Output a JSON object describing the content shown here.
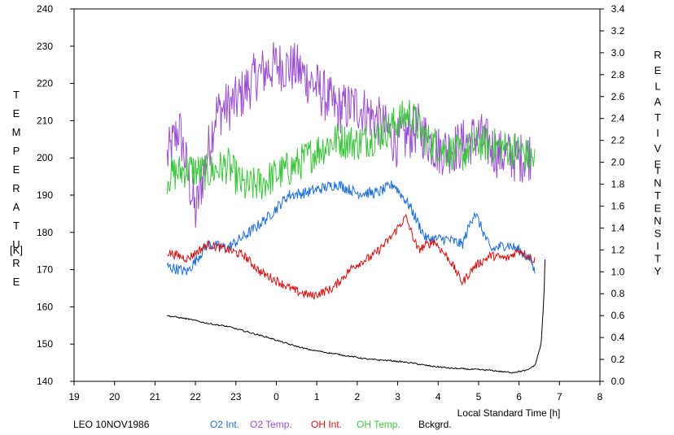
{
  "chart_data": {
    "type": "line",
    "xlabel": "Local Standard Time [h]",
    "x_ticks": [
      "19",
      "20",
      "21",
      "22",
      "23",
      "0",
      "1",
      "2",
      "3",
      "4",
      "5",
      "6",
      "7",
      "8"
    ],
    "x_range_hours": [
      19,
      32
    ],
    "y_left": {
      "label_letters": [
        "T",
        "E",
        "M",
        "P",
        "E",
        "R",
        "A",
        "T",
        "U",
        "R",
        "E"
      ],
      "unit": "[K]",
      "range": [
        140,
        240
      ],
      "ticks": [
        "140",
        "150",
        "160",
        "170",
        "180",
        "190",
        "200",
        "210",
        "220",
        "230",
        "240"
      ]
    },
    "y_right": {
      "label_word1": [
        "R",
        "E",
        "L",
        "A",
        "T",
        "I",
        "V",
        "E"
      ],
      "label_word2": [
        "I",
        "N",
        "T",
        "E",
        "N",
        "S",
        "I",
        "T",
        "Y"
      ],
      "range": [
        0.0,
        3.4
      ],
      "ticks": [
        "0.0",
        "0.2",
        "0.4",
        "0.6",
        "0.8",
        "1.0",
        "1.2",
        "1.4",
        "1.6",
        "1.8",
        "2.0",
        "2.2",
        "2.4",
        "2.6",
        "2.8",
        "3.0",
        "3.2",
        "3.4"
      ]
    },
    "footer_label": "LEO 10NOV1986",
    "series": [
      {
        "name": "O2 Int.",
        "color": "#1f6fd8",
        "axis": "right",
        "noise": 0.05,
        "points": [
          [
            21.3,
            1.05
          ],
          [
            21.8,
            1.0
          ],
          [
            22.3,
            1.25
          ],
          [
            22.8,
            1.22
          ],
          [
            23.3,
            1.35
          ],
          [
            23.8,
            1.5
          ],
          [
            24.3,
            1.7
          ],
          [
            24.7,
            1.72
          ],
          [
            25.0,
            1.75
          ],
          [
            25.5,
            1.8
          ],
          [
            26.0,
            1.72
          ],
          [
            26.5,
            1.72
          ],
          [
            26.9,
            1.8
          ],
          [
            27.3,
            1.6
          ],
          [
            27.7,
            1.3
          ],
          [
            28.2,
            1.3
          ],
          [
            28.6,
            1.25
          ],
          [
            28.9,
            1.55
          ],
          [
            29.3,
            1.2
          ],
          [
            29.7,
            1.25
          ],
          [
            30.0,
            1.2
          ],
          [
            30.3,
            1.1
          ],
          [
            30.4,
            0.98
          ]
        ]
      },
      {
        "name": "O2 Temp.",
        "color": "#9b4fd0",
        "axis": "left",
        "noise": 7,
        "points": [
          [
            21.3,
            200
          ],
          [
            21.6,
            208
          ],
          [
            22.0,
            185
          ],
          [
            22.5,
            212
          ],
          [
            23.0,
            215
          ],
          [
            23.5,
            222
          ],
          [
            24.0,
            225
          ],
          [
            24.5,
            224
          ],
          [
            25.0,
            219
          ],
          [
            25.5,
            213
          ],
          [
            26.0,
            214
          ],
          [
            26.5,
            210
          ],
          [
            27.0,
            204
          ],
          [
            27.5,
            208
          ],
          [
            28.0,
            202
          ],
          [
            28.5,
            203
          ],
          [
            29.0,
            206
          ],
          [
            29.5,
            201
          ],
          [
            30.0,
            200
          ],
          [
            30.3,
            201
          ]
        ]
      },
      {
        "name": "OH Int.",
        "color": "#d41414",
        "axis": "right",
        "noise": 0.04,
        "points": [
          [
            21.3,
            1.18
          ],
          [
            21.8,
            1.12
          ],
          [
            22.3,
            1.25
          ],
          [
            22.8,
            1.2
          ],
          [
            23.2,
            1.15
          ],
          [
            23.6,
            1.0
          ],
          [
            24.1,
            0.9
          ],
          [
            24.5,
            0.82
          ],
          [
            24.9,
            0.78
          ],
          [
            25.4,
            0.85
          ],
          [
            25.9,
            1.05
          ],
          [
            26.4,
            1.15
          ],
          [
            26.8,
            1.3
          ],
          [
            27.2,
            1.5
          ],
          [
            27.5,
            1.2
          ],
          [
            27.9,
            1.28
          ],
          [
            28.3,
            1.1
          ],
          [
            28.6,
            0.9
          ],
          [
            28.9,
            1.05
          ],
          [
            29.3,
            1.15
          ],
          [
            29.7,
            1.12
          ],
          [
            30.0,
            1.2
          ],
          [
            30.4,
            1.1
          ]
        ]
      },
      {
        "name": "OH Temp.",
        "color": "#3ec43e",
        "axis": "left",
        "noise": 5,
        "points": [
          [
            21.3,
            195
          ],
          [
            21.8,
            197
          ],
          [
            22.3,
            196
          ],
          [
            22.8,
            198
          ],
          [
            23.2,
            192
          ],
          [
            23.6,
            193
          ],
          [
            24.1,
            196
          ],
          [
            24.5,
            198
          ],
          [
            25.0,
            202
          ],
          [
            25.5,
            205
          ],
          [
            26.0,
            204
          ],
          [
            26.5,
            206
          ],
          [
            26.9,
            209
          ],
          [
            27.3,
            212
          ],
          [
            27.7,
            205
          ],
          [
            28.2,
            202
          ],
          [
            28.6,
            201
          ],
          [
            29.0,
            204
          ],
          [
            29.5,
            203
          ],
          [
            30.0,
            202
          ],
          [
            30.4,
            199
          ]
        ]
      },
      {
        "name": "Bckgrd.",
        "color": "#000000",
        "axis": "right",
        "noise": 0.012,
        "points": [
          [
            21.3,
            0.6
          ],
          [
            21.8,
            0.57
          ],
          [
            22.3,
            0.53
          ],
          [
            22.8,
            0.5
          ],
          [
            23.3,
            0.45
          ],
          [
            23.8,
            0.4
          ],
          [
            24.3,
            0.34
          ],
          [
            24.8,
            0.29
          ],
          [
            25.3,
            0.26
          ],
          [
            25.8,
            0.23
          ],
          [
            26.3,
            0.2
          ],
          [
            26.8,
            0.19
          ],
          [
            27.3,
            0.17
          ],
          [
            27.8,
            0.14
          ],
          [
            28.3,
            0.12
          ],
          [
            28.8,
            0.11
          ],
          [
            29.3,
            0.1
          ],
          [
            29.8,
            0.08
          ],
          [
            30.2,
            0.1
          ],
          [
            30.4,
            0.15
          ],
          [
            30.55,
            0.35
          ],
          [
            30.62,
            0.8
          ],
          [
            30.65,
            1.22
          ]
        ]
      }
    ]
  }
}
